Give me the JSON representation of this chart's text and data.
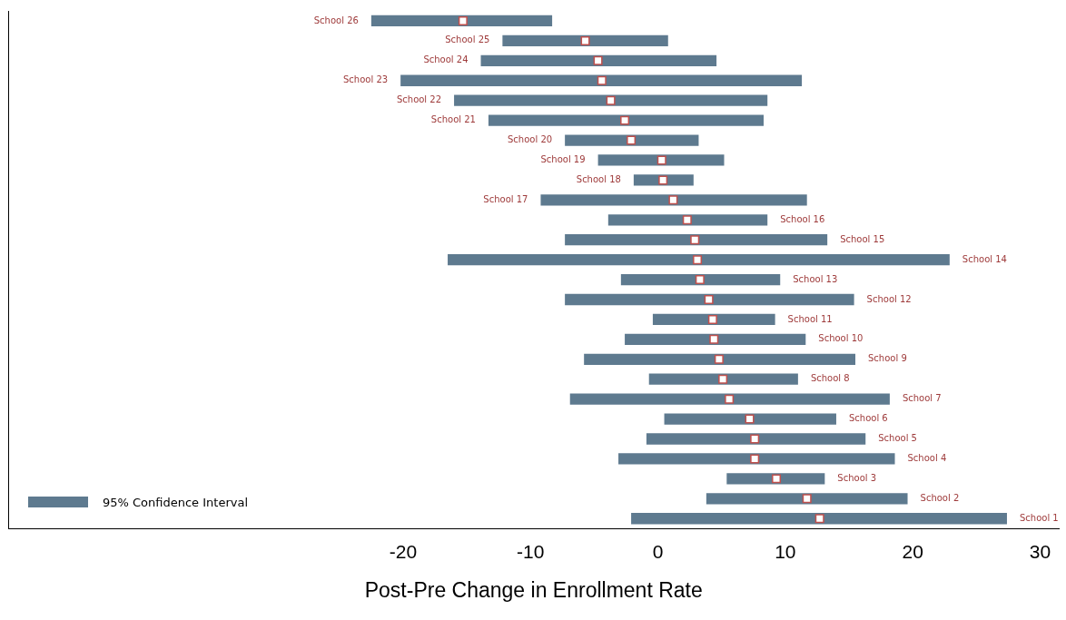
{
  "chart_data": {
    "type": "bar",
    "orientation": "horizontal",
    "xlabel": "Post-Pre Change in Enrollment Rate",
    "categories": [
      "School 26",
      "School 25",
      "School 24",
      "School 23",
      "School 22",
      "School 21",
      "School 20",
      "School 19",
      "School 18",
      "School 17",
      "School 16",
      "School 15",
      "School 14",
      "School 13",
      "School 12",
      "School 11",
      "School 10",
      "School 9",
      "School 8",
      "School 7",
      "School 6",
      "School 5",
      "School 4",
      "School 3",
      "School 2",
      "School 1"
    ],
    "series": [
      {
        "name": "95% Confidence Interval",
        "color": "#5e7a8f",
        "base": [
          -22.5,
          -12.2,
          -13.9,
          -20.2,
          -16.0,
          -13.3,
          -7.3,
          -4.7,
          -1.9,
          -9.2,
          -3.9,
          -7.3,
          -16.5,
          -2.9,
          -7.3,
          -0.4,
          -2.6,
          -5.8,
          -0.7,
          -6.9,
          0.5,
          -0.9,
          -3.1,
          5.4,
          3.8,
          -2.1
        ],
        "values": [
          14.2,
          13.0,
          18.5,
          31.5,
          24.6,
          21.6,
          10.5,
          9.9,
          4.7,
          20.9,
          12.5,
          20.6,
          39.4,
          12.5,
          22.7,
          9.6,
          14.2,
          21.3,
          11.7,
          25.1,
          13.5,
          17.2,
          21.7,
          7.7,
          15.8,
          29.5
        ]
      },
      {
        "type": "scatter",
        "color": "#c0504d",
        "marker": "square",
        "x": [
          "School 26",
          "School 25",
          "School 24",
          "School 23",
          "School 22",
          "School 21",
          "School 20",
          "School 19",
          "School 18",
          "School 17",
          "School 16",
          "School 15",
          "School 14",
          "School 13",
          "School 12",
          "School 11",
          "School 10",
          "School 9",
          "School 8",
          "School 7",
          "School 6",
          "School 5",
          "School 4",
          "School 3",
          "School 2",
          "School 1"
        ],
        "values": [
          -15.3,
          -5.7,
          -4.7,
          -4.4,
          -3.7,
          -2.6,
          -2.1,
          0.3,
          0.4,
          1.2,
          2.3,
          2.9,
          3.1,
          3.3,
          4.0,
          4.3,
          4.4,
          4.8,
          5.1,
          5.6,
          7.2,
          7.6,
          7.6,
          9.3,
          11.7,
          12.7
        ]
      }
    ],
    "xlim": [
      -51,
      31.5
    ],
    "xticks": [
      -20,
      -10,
      0,
      10,
      20,
      30
    ],
    "tick_labels": "x",
    "grid": false,
    "legend": "bottom left"
  }
}
